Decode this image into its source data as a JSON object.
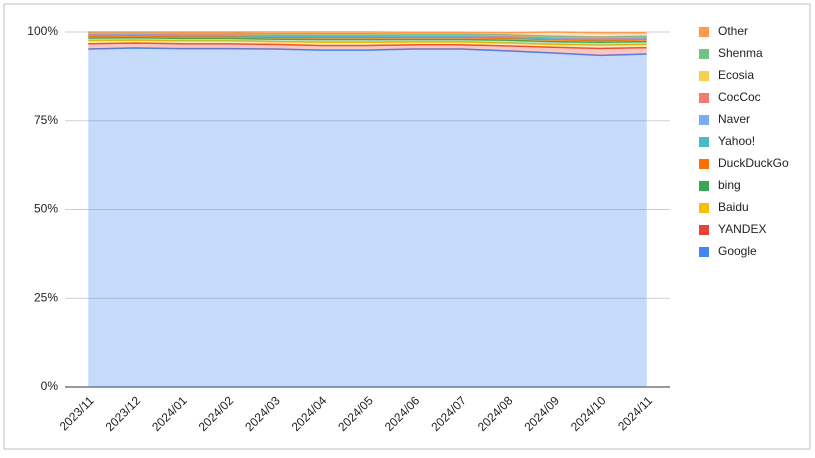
{
  "chart_data": {
    "type": "stacked-area",
    "categories": [
      "2023/11",
      "2023/12",
      "2024/01",
      "2024/02",
      "2024/03",
      "2024/04",
      "2024/05",
      "2024/06",
      "2024/07",
      "2024/08",
      "2024/09",
      "2024/10",
      "2024/11"
    ],
    "series": [
      {
        "name": "Google",
        "color": "#4285f4",
        "values": [
          95.2,
          95.5,
          95.3,
          95.3,
          95.2,
          94.9,
          94.9,
          95.2,
          95.2,
          94.7,
          94.1,
          93.4,
          93.8
        ]
      },
      {
        "name": "YANDEX",
        "color": "#ea4335",
        "values": [
          1.5,
          1.4,
          1.4,
          1.4,
          1.3,
          1.3,
          1.3,
          1.2,
          1.2,
          1.4,
          1.6,
          2.0,
          1.8
        ]
      },
      {
        "name": "Baidu",
        "color": "#fbbc04",
        "values": [
          0.9,
          0.8,
          0.8,
          0.8,
          0.8,
          0.9,
          0.9,
          0.8,
          0.8,
          0.8,
          0.8,
          0.9,
          0.9
        ]
      },
      {
        "name": "bing",
        "color": "#34a853",
        "values": [
          0.7,
          0.7,
          0.7,
          0.7,
          0.7,
          0.8,
          0.8,
          0.7,
          0.7,
          0.8,
          0.8,
          0.8,
          0.8
        ]
      },
      {
        "name": "DuckDuckGo",
        "color": "#ff6d01",
        "values": [
          0.5,
          0.5,
          0.5,
          0.5,
          0.5,
          0.5,
          0.5,
          0.5,
          0.5,
          0.5,
          0.5,
          0.5,
          0.5
        ]
      },
      {
        "name": "Yahoo!",
        "color": "#46bdc6",
        "values": [
          0.3,
          0.3,
          0.3,
          0.3,
          0.3,
          0.4,
          0.4,
          0.3,
          0.3,
          0.3,
          0.3,
          0.3,
          0.3
        ]
      },
      {
        "name": "Naver",
        "color": "#7baaf7",
        "values": [
          0.2,
          0.2,
          0.2,
          0.2,
          0.2,
          0.2,
          0.2,
          0.2,
          0.2,
          0.2,
          0.2,
          0.2,
          0.2
        ]
      },
      {
        "name": "CocCoc",
        "color": "#f07b72",
        "values": [
          0.2,
          0.2,
          0.2,
          0.2,
          0.2,
          0.2,
          0.2,
          0.2,
          0.2,
          0.2,
          0.2,
          0.2,
          0.2
        ]
      },
      {
        "name": "Ecosia",
        "color": "#fcd04f",
        "values": [
          0.2,
          0.2,
          0.2,
          0.2,
          0.2,
          0.2,
          0.2,
          0.2,
          0.2,
          0.2,
          0.2,
          0.2,
          0.2
        ]
      },
      {
        "name": "Shenma",
        "color": "#71c287",
        "values": [
          0.1,
          0.1,
          0.1,
          0.1,
          0.1,
          0.1,
          0.1,
          0.1,
          0.1,
          0.1,
          0.1,
          0.1,
          0.1
        ]
      },
      {
        "name": "Other",
        "color": "#ff994d",
        "values": [
          0.2,
          0.1,
          0.3,
          0.3,
          0.5,
          0.5,
          0.5,
          0.5,
          0.5,
          0.6,
          1.2,
          1.2,
          1.0
        ]
      }
    ],
    "ylim": [
      0,
      100
    ],
    "yticks": [
      {
        "value": 0,
        "label": "0%"
      },
      {
        "value": 25,
        "label": "25%"
      },
      {
        "value": 50,
        "label": "50%"
      },
      {
        "value": 75,
        "label": "75%"
      },
      {
        "value": 100,
        "label": "100%"
      }
    ],
    "grid": true,
    "legend": "right"
  }
}
